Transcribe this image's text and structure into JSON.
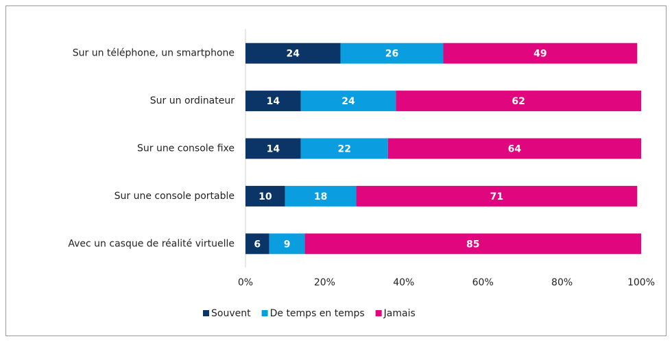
{
  "chart_data": {
    "type": "stacked_barh",
    "categories": [
      "Sur un téléphone, un smartphone",
      "Sur un ordinateur",
      "Sur une console fixe",
      "Sur une console portable",
      "Avec un casque de réalité virtuelle"
    ],
    "series": [
      {
        "name": "Souvent",
        "color": "#0b3467",
        "values": [
          24,
          14,
          14,
          10,
          6
        ]
      },
      {
        "name": "De temps en temps",
        "color": "#0a9ee0",
        "values": [
          26,
          24,
          22,
          18,
          9
        ]
      },
      {
        "name": "Jamais",
        "color": "#e0067e",
        "values": [
          49,
          62,
          64,
          71,
          85
        ]
      }
    ],
    "xlim": [
      0,
      100
    ],
    "xticks": [
      {
        "value": 0,
        "label": "0%"
      },
      {
        "value": 20,
        "label": "20%"
      },
      {
        "value": 40,
        "label": "40%"
      },
      {
        "value": 60,
        "label": "60%"
      },
      {
        "value": 80,
        "label": "80%"
      },
      {
        "value": 100,
        "label": "100%"
      }
    ],
    "legend": "bottom"
  }
}
